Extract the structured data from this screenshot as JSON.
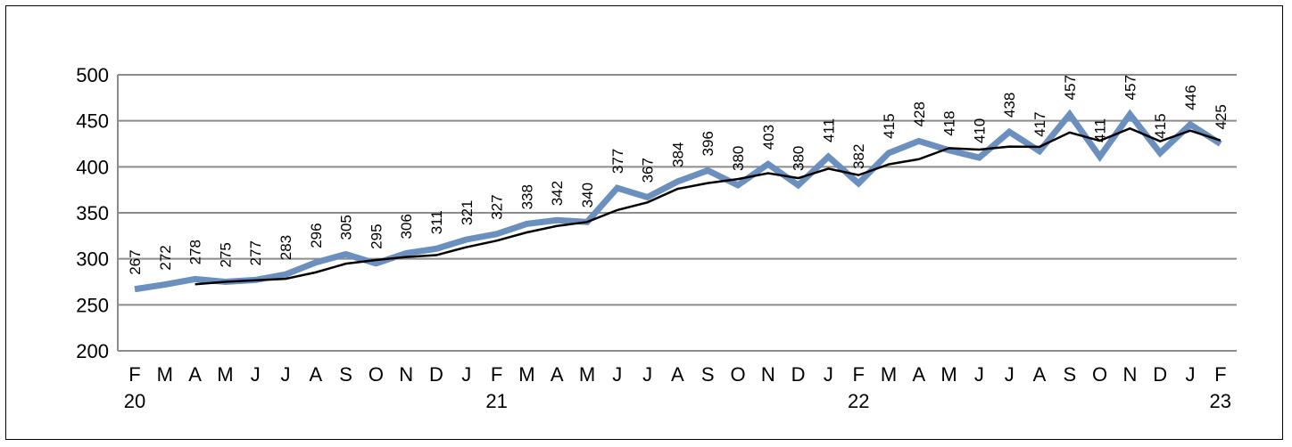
{
  "chart_data": {
    "type": "line",
    "title": "",
    "xlabel": "",
    "ylabel": "",
    "ylim": [
      200,
      500
    ],
    "yticks": [
      200,
      250,
      300,
      350,
      400,
      450,
      500
    ],
    "grid": true,
    "legend": "none",
    "categories": [
      "F",
      "M",
      "A",
      "M",
      "J",
      "J",
      "A",
      "S",
      "O",
      "N",
      "D",
      "J",
      "F",
      "M",
      "A",
      "M",
      "J",
      "J",
      "A",
      "S",
      "O",
      "N",
      "D",
      "J",
      "F",
      "M",
      "A",
      "M",
      "J",
      "J",
      "A",
      "S",
      "O",
      "N",
      "D",
      "J",
      "F"
    ],
    "year_labels": [
      {
        "index": 0,
        "label": "20"
      },
      {
        "index": 12,
        "label": "21"
      },
      {
        "index": 24,
        "label": "22"
      },
      {
        "index": 36,
        "label": "23"
      }
    ],
    "series": [
      {
        "values": [
          267,
          272,
          278,
          275,
          277,
          283,
          296,
          305,
          295,
          306,
          311,
          321,
          327,
          338,
          342,
          340,
          377,
          367,
          384,
          396,
          380,
          403,
          380,
          411,
          382,
          415,
          428,
          418,
          410,
          438,
          417,
          457,
          411,
          457,
          415,
          446,
          425
        ],
        "labels": [
          "267",
          "272",
          "278",
          "275",
          "277",
          "283",
          "296",
          "305",
          "295",
          "306",
          "311",
          "321",
          "327",
          "338",
          "342",
          "340",
          "377",
          "367",
          "384",
          "396",
          "380",
          "403",
          "380",
          "411",
          "382",
          "415",
          "428",
          "418",
          "410",
          "438",
          "417",
          "457",
          "411",
          "457",
          "415",
          "446",
          "425"
        ],
        "color": "#6b8fbf"
      },
      {
        "values": [
          null,
          null,
          272.3,
          275,
          276.7,
          278.3,
          285.3,
          294.7,
          298.7,
          302,
          304,
          312.7,
          319.7,
          328.7,
          335.7,
          340,
          353,
          361.3,
          376,
          382.3,
          386.7,
          393,
          387.7,
          398,
          391,
          402.7,
          408.3,
          420.3,
          418.7,
          422,
          421.7,
          437.3,
          428.3,
          441.7,
          427.7,
          439.3,
          428.7
        ],
        "color": "#000000"
      }
    ]
  }
}
